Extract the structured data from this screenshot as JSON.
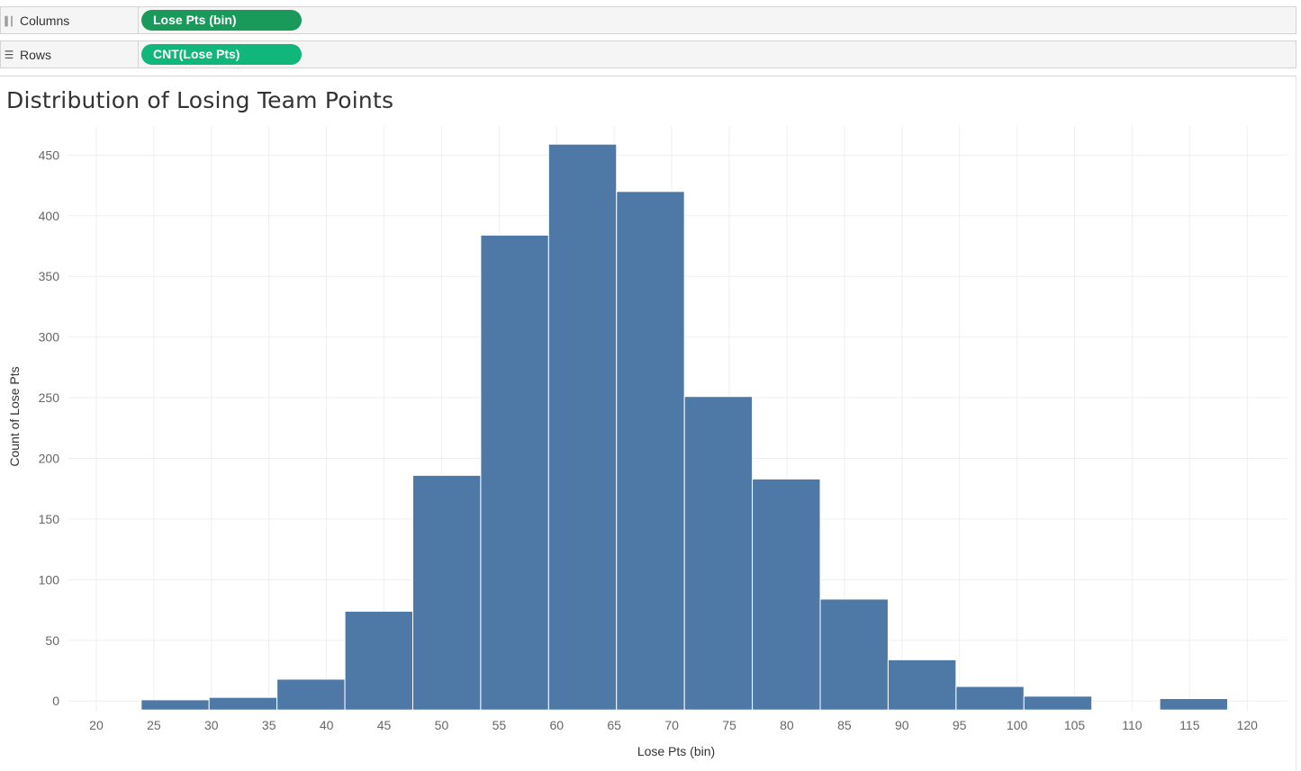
{
  "shelves": {
    "columns": {
      "label": "Columns",
      "icon": "columns-icon",
      "pill": "Lose Pts (bin)"
    },
    "rows": {
      "label": "Rows",
      "icon": "rows-icon",
      "pill": "CNT(Lose Pts)"
    }
  },
  "colors": {
    "bar": "#4e79a7",
    "dimension_pill": "#1a9a5a",
    "measure_pill": "#10b67a",
    "grid": "#efefef"
  },
  "chart_data": {
    "type": "bar",
    "title": "Distribution of Losing Team Points",
    "xlabel": "Lose Pts (bin)",
    "ylabel": "Count of Lose Pts",
    "bin_width": 5.9,
    "bins": [
      {
        "start": 23.9,
        "value": 1
      },
      {
        "start": 29.8,
        "value": 3
      },
      {
        "start": 35.7,
        "value": 18
      },
      {
        "start": 41.6,
        "value": 74
      },
      {
        "start": 47.5,
        "value": 186
      },
      {
        "start": 53.4,
        "value": 384
      },
      {
        "start": 59.3,
        "value": 459
      },
      {
        "start": 65.2,
        "value": 420
      },
      {
        "start": 71.1,
        "value": 251
      },
      {
        "start": 77.0,
        "value": 183
      },
      {
        "start": 82.9,
        "value": 84
      },
      {
        "start": 88.8,
        "value": 34
      },
      {
        "start": 94.7,
        "value": 12
      },
      {
        "start": 100.6,
        "value": 4
      },
      {
        "start": 106.5,
        "value": 0
      },
      {
        "start": 112.4,
        "value": 2
      }
    ],
    "xticks": [
      20,
      25,
      30,
      35,
      40,
      45,
      50,
      55,
      60,
      65,
      70,
      75,
      80,
      85,
      90,
      95,
      100,
      105,
      110,
      115,
      120
    ],
    "yticks": [
      0,
      50,
      100,
      150,
      200,
      250,
      300,
      350,
      400,
      450
    ],
    "xlim": [
      17.5,
      123.5
    ],
    "ylim": [
      -8,
      474
    ],
    "grid": true
  }
}
